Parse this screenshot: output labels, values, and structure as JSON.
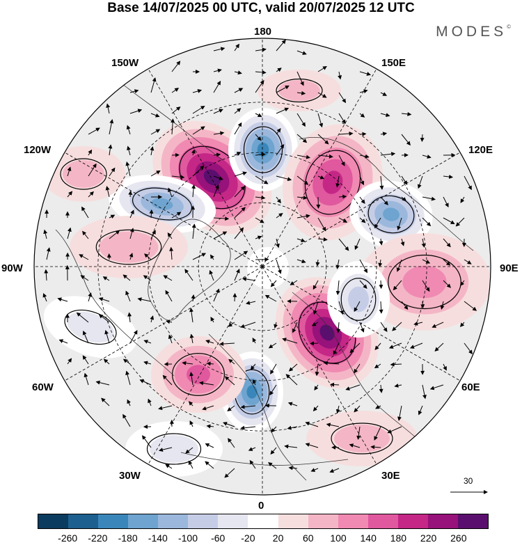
{
  "header": {
    "title": "Base 14/07/2025 00 UTC, valid 20/07/2025 12 UTC",
    "brand": "MODES",
    "brand_mark": "©"
  },
  "map": {
    "projection": "north-polar-stereographic",
    "longitude_labels": {
      "top": "180",
      "bottom": "0",
      "left": "90W",
      "right": "90E",
      "upper_left_1": "150W",
      "upper_left_2": "120W",
      "upper_right_1": "150E",
      "upper_right_2": "120E",
      "lower_left_1": "60W",
      "lower_left_2": "30W",
      "lower_right_1": "60E",
      "lower_right_2": "30E"
    },
    "anomaly_centers": [
      {
        "name": "high-north-pacific",
        "sign": "positive",
        "peak": 240
      },
      {
        "name": "low-bering-strait",
        "sign": "negative",
        "peak": -200
      },
      {
        "name": "high-east-siberia",
        "sign": "positive",
        "peak": 160
      },
      {
        "name": "low-central-siberia",
        "sign": "negative",
        "peak": -160
      },
      {
        "name": "low-canada-west",
        "sign": "negative",
        "peak": -160
      },
      {
        "name": "high-scandinavia",
        "sign": "positive",
        "peak": 240
      },
      {
        "name": "low-north-atlantic",
        "sign": "negative",
        "peak": -200
      },
      {
        "name": "high-greenland-south",
        "sign": "positive",
        "peak": 150
      },
      {
        "name": "high-west-siberia",
        "sign": "positive",
        "peak": 80
      },
      {
        "name": "high-canada",
        "sign": "positive",
        "peak": 60
      },
      {
        "name": "low-kara-sea",
        "sign": "negative",
        "peak": -100
      }
    ],
    "vector_scale_value": "30"
  },
  "colorbar": {
    "colors": [
      "#0b3b5e",
      "#1d5f8e",
      "#3a86ba",
      "#6ea4cf",
      "#9bb8dc",
      "#c5cde6",
      "#e6e6f0",
      "#ffffff",
      "#f7dede",
      "#f4b6c6",
      "#f08ab2",
      "#e0589e",
      "#c42786",
      "#97127a",
      "#5a0f6e"
    ],
    "ticks": [
      "-260",
      "-220",
      "-180",
      "-140",
      "-100",
      "-60",
      "-20",
      "20",
      "60",
      "100",
      "140",
      "180",
      "220",
      "260"
    ]
  }
}
